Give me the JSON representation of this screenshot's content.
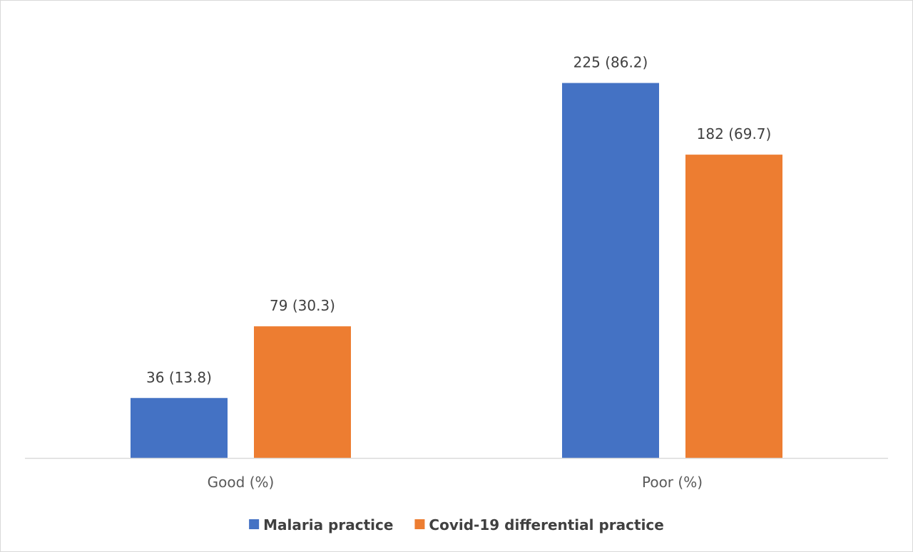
{
  "chart_data": {
    "type": "bar",
    "categories": [
      "Good (%)",
      "Poor (%)"
    ],
    "series": [
      {
        "name": "Malaria practice",
        "values": [
          36,
          225
        ],
        "percent": [
          13.8,
          86.2
        ],
        "labels": [
          "36 (13.8)",
          "225 (86.2)"
        ],
        "color": "#4472c4"
      },
      {
        "name": "Covid-19 differential practice",
        "values": [
          79,
          182
        ],
        "percent": [
          30.3,
          69.7
        ],
        "labels": [
          "79 (30.3)",
          "182 (69.7)"
        ],
        "color": "#ed7d31"
      }
    ],
    "title": "",
    "xlabel": "",
    "ylabel": "",
    "ylim": [
      0,
      250
    ],
    "grid": false,
    "y_axis_visible": false,
    "legend_position": "bottom",
    "axis_color": "#d9d9d9"
  }
}
